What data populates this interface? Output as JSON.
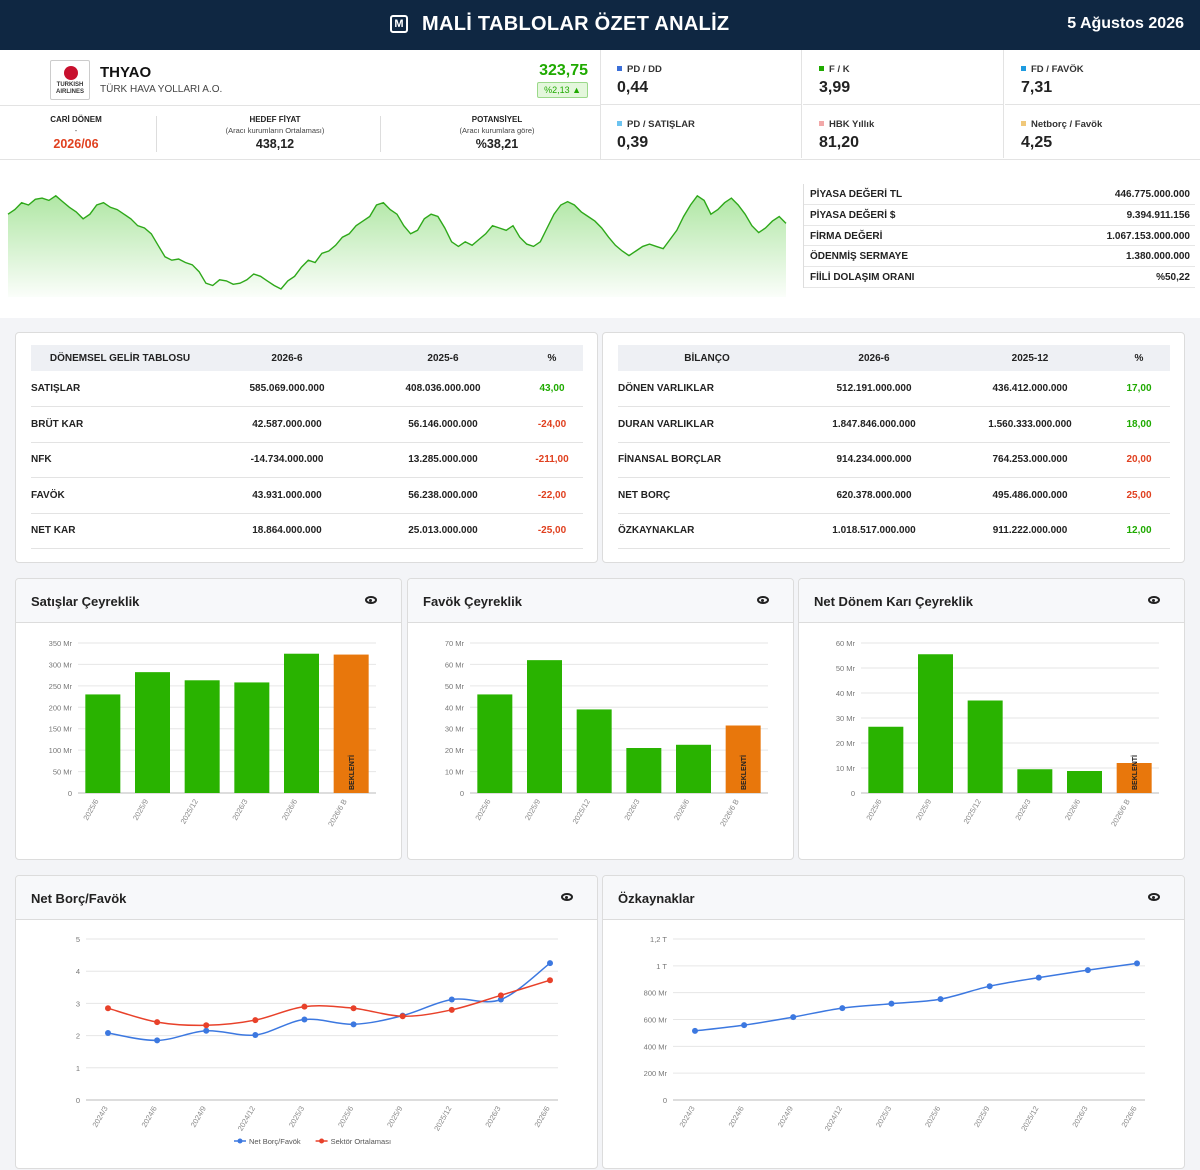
{
  "header": {
    "title": "MALİ TABLOLAR ÖZET ANALİZ",
    "date": "5 Ağustos 2026",
    "logo_icon": "M"
  },
  "company": {
    "logo_text": "TURKISH AIRLINES",
    "ticker": "THYAO",
    "name": "TÜRK HAVA YOLLARI A.O.",
    "price": "323,75",
    "change": "%2,13 ▲"
  },
  "period": {
    "label": "CARİ DÖNEM",
    "dash": "-",
    "value": "2026/06"
  },
  "target": {
    "label": "HEDEF FİYAT",
    "sub": "(Aracı kurumların Ortalaması)",
    "value": "438,12"
  },
  "potential": {
    "label": "POTANSİYEL",
    "sub": "(Aracı kurumlara göre)",
    "value": "%38,21"
  },
  "ratios": [
    {
      "label": "PD / DD",
      "value": "0,44",
      "color": "#3b6fd8"
    },
    {
      "label": "F / K",
      "value": "3,99",
      "color": "#1faa00"
    },
    {
      "label": "FD / FAVÖK",
      "value": "7,31",
      "color": "#1e9be0"
    },
    {
      "label": "PD / SATIŞLAR",
      "value": "0,39",
      "color": "#6cc3f0"
    },
    {
      "label": "HBK Yıllık",
      "value": "81,20",
      "color": "#f2a8a8"
    },
    {
      "label": "Netborç / Favök",
      "value": "4,25",
      "color": "#f0c87a"
    }
  ],
  "market": [
    {
      "k": "PİYASA DEĞERİ TL",
      "v": "446.775.000.000"
    },
    {
      "k": "PİYASA DEĞERİ $",
      "v": "9.394.911.156"
    },
    {
      "k": "FİRMA DEĞERİ",
      "v": "1.067.153.000.000"
    },
    {
      "k": "ÖDENMİŞ SERMAYE",
      "v": "1.380.000.000"
    },
    {
      "k": "FİİLİ DOLAŞIM ORANI",
      "v": "%50,22"
    }
  ],
  "sparkline": [
    0.72,
    0.76,
    0.82,
    0.8,
    0.85,
    0.86,
    0.84,
    0.88,
    0.83,
    0.78,
    0.74,
    0.68,
    0.72,
    0.8,
    0.82,
    0.78,
    0.76,
    0.72,
    0.68,
    0.62,
    0.6,
    0.55,
    0.45,
    0.35,
    0.32,
    0.33,
    0.3,
    0.28,
    0.22,
    0.12,
    0.1,
    0.15,
    0.14,
    0.11,
    0.12,
    0.15,
    0.2,
    0.18,
    0.14,
    0.1,
    0.07,
    0.14,
    0.18,
    0.26,
    0.32,
    0.3,
    0.38,
    0.4,
    0.45,
    0.52,
    0.55,
    0.62,
    0.66,
    0.7,
    0.8,
    0.82,
    0.76,
    0.72,
    0.62,
    0.55,
    0.58,
    0.68,
    0.72,
    0.7,
    0.6,
    0.48,
    0.44,
    0.48,
    0.45,
    0.5,
    0.55,
    0.62,
    0.6,
    0.58,
    0.62,
    0.52,
    0.46,
    0.44,
    0.48,
    0.6,
    0.72,
    0.8,
    0.83,
    0.8,
    0.74,
    0.7,
    0.66,
    0.6,
    0.52,
    0.45,
    0.4,
    0.36,
    0.4,
    0.44,
    0.46,
    0.44,
    0.42,
    0.5,
    0.58,
    0.7,
    0.8,
    0.88,
    0.84,
    0.72,
    0.76,
    0.82,
    0.86,
    0.8,
    0.72,
    0.62,
    0.56,
    0.6,
    0.66,
    0.7,
    0.64
  ],
  "income": {
    "headers": [
      "DÖNEMSEL GELİR TABLOSU",
      "2026-6",
      "2025-6",
      "%"
    ],
    "rows": [
      {
        "label": "SATIŞLAR",
        "a": "585.069.000.000",
        "b": "408.036.000.000",
        "p": "43,00",
        "pos": true
      },
      {
        "label": "BRÜT KAR",
        "a": "42.587.000.000",
        "b": "56.146.000.000",
        "p": "-24,00",
        "pos": false
      },
      {
        "label": "NFK",
        "a": "-14.734.000.000",
        "b": "13.285.000.000",
        "p": "-211,00",
        "pos": false
      },
      {
        "label": "FAVÖK",
        "a": "43.931.000.000",
        "b": "56.238.000.000",
        "p": "-22,00",
        "pos": false
      },
      {
        "label": "NET KAR",
        "a": "18.864.000.000",
        "b": "25.013.000.000",
        "p": "-25,00",
        "pos": false
      }
    ]
  },
  "balance": {
    "headers": [
      "BİLANÇO",
      "2026-6",
      "2025-12",
      "%"
    ],
    "rows": [
      {
        "label": "DÖNEN VARLIKLAR",
        "a": "512.191.000.000",
        "b": "436.412.000.000",
        "p": "17,00",
        "pos": true
      },
      {
        "label": "DURAN VARLIKLAR",
        "a": "1.847.846.000.000",
        "b": "1.560.333.000.000",
        "p": "18,00",
        "pos": true
      },
      {
        "label": "FİNANSAL BORÇLAR",
        "a": "914.234.000.000",
        "b": "764.253.000.000",
        "p": "20,00",
        "pos": false
      },
      {
        "label": "NET BORÇ",
        "a": "620.378.000.000",
        "b": "495.486.000.000",
        "p": "25,00",
        "pos": false
      },
      {
        "label": "ÖZKAYNAKLAR",
        "a": "1.018.517.000.000",
        "b": "911.222.000.000",
        "p": "12,00",
        "pos": true
      }
    ]
  },
  "chart_data": [
    {
      "type": "bar",
      "title": "Satışlar Çeyreklik",
      "categories": [
        "2025/6",
        "2025/9",
        "2025/12",
        "2026/3",
        "2026/6",
        "2026/6 B"
      ],
      "values": [
        230,
        282,
        263,
        258,
        325,
        323
      ],
      "ylim": [
        0,
        350
      ],
      "yticks": [
        "0",
        "50 Mr",
        "100 Mr",
        "150 Mr",
        "200 Mr",
        "250 Mr",
        "300 Mr",
        "350 Mr"
      ],
      "colors": [
        "#29b300",
        "#29b300",
        "#29b300",
        "#29b300",
        "#29b300",
        "#e8770c"
      ],
      "expected_label": "BEKLENTİ"
    },
    {
      "type": "bar",
      "title": "Favök Çeyreklik",
      "categories": [
        "2025/6",
        "2025/9",
        "2025/12",
        "2026/3",
        "2026/6",
        "2026/6 B"
      ],
      "values": [
        46,
        62,
        39,
        21,
        22.5,
        31.5
      ],
      "ylim": [
        0,
        70
      ],
      "yticks": [
        "0",
        "10 Mr",
        "20 Mr",
        "30 Mr",
        "40 Mr",
        "50 Mr",
        "60 Mr",
        "70 Mr"
      ],
      "colors": [
        "#29b300",
        "#29b300",
        "#29b300",
        "#29b300",
        "#29b300",
        "#e8770c"
      ],
      "expected_label": "BEKLENTİ"
    },
    {
      "type": "bar",
      "title": "Net Dönem Karı Çeyreklik",
      "categories": [
        "2025/6",
        "2025/9",
        "2025/12",
        "2026/3",
        "2026/6",
        "2026/6 B"
      ],
      "values": [
        26.5,
        55.5,
        37,
        9.5,
        8.8,
        12
      ],
      "ylim": [
        0,
        60
      ],
      "yticks": [
        "0",
        "10 Mr",
        "20 Mr",
        "30 Mr",
        "40 Mr",
        "50 Mr",
        "60 Mr"
      ],
      "colors": [
        "#29b300",
        "#29b300",
        "#29b300",
        "#29b300",
        "#29b300",
        "#e8770c"
      ],
      "expected_label": "BEKLENTİ"
    },
    {
      "type": "line",
      "title": "Net Borç/Favök",
      "categories": [
        "2024/3",
        "2024/6",
        "2024/9",
        "2024/12",
        "2025/3",
        "2025/6",
        "2025/9",
        "2025/12",
        "2026/3",
        "2026/6"
      ],
      "ylim": [
        0,
        5
      ],
      "yticks": [
        "0",
        "1",
        "2",
        "3",
        "4",
        "5"
      ],
      "series": [
        {
          "name": "Net Borç/Favök",
          "color": "#3c78e0",
          "values": [
            2.08,
            1.85,
            2.15,
            2.02,
            2.5,
            2.35,
            2.62,
            3.12,
            3.12,
            4.25
          ]
        },
        {
          "name": "Sektör Ortalaması",
          "color": "#e8412a",
          "values": [
            2.85,
            2.42,
            2.32,
            2.48,
            2.9,
            2.85,
            2.6,
            2.8,
            3.25,
            3.72
          ]
        }
      ],
      "legend": "bottom"
    },
    {
      "type": "line",
      "title": "Özkaynaklar",
      "categories": [
        "2024/3",
        "2024/6",
        "2024/9",
        "2024/12",
        "2025/3",
        "2025/6",
        "2025/9",
        "2025/12",
        "2026/3",
        "2026/6"
      ],
      "ylim": [
        0,
        1200
      ],
      "yticks": [
        "0",
        "200 Mr",
        "400 Mr",
        "600 Mr",
        "800 Mr",
        "1 T",
        "1,2 T"
      ],
      "series": [
        {
          "name": "",
          "color": "#3c78e0",
          "values": [
            515,
            558,
            618,
            685,
            718,
            752,
            848,
            912,
            968,
            1018
          ]
        }
      ]
    }
  ]
}
